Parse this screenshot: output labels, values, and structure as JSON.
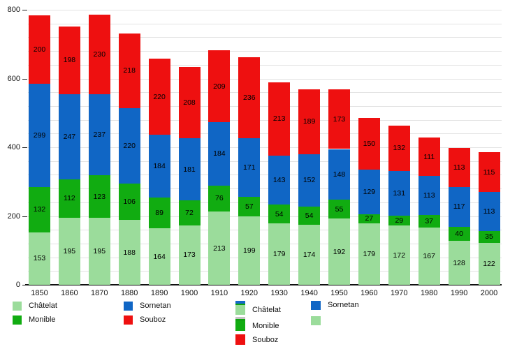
{
  "chart_data": {
    "type": "bar",
    "stacked": true,
    "title": "",
    "xlabel": "",
    "ylabel": "",
    "categories": [
      "1850",
      "1860",
      "1870",
      "1880",
      "1890",
      "1900",
      "1910",
      "1920",
      "1930",
      "1940",
      "1950",
      "1960",
      "1970",
      "1980",
      "1990",
      "2000"
    ],
    "series": [
      {
        "name": "Châtelat",
        "color": "#9BDC9B",
        "values": [
          153,
          195,
          195,
          188,
          164,
          173,
          213,
          199,
          179,
          174,
          192,
          179,
          172,
          167,
          128,
          122
        ]
      },
      {
        "name": "Monible",
        "color": "#11AC11",
        "values": [
          132,
          112,
          123,
          106,
          89,
          72,
          76,
          57,
          54,
          54,
          55,
          27,
          29,
          37,
          40,
          35
        ]
      },
      {
        "name": "Sornetan",
        "color": "#1066C5",
        "values": [
          299,
          247,
          237,
          220,
          184,
          181,
          184,
          171,
          143,
          152,
          148,
          129,
          131,
          113,
          117,
          113
        ]
      },
      {
        "name": "Souboz",
        "color": "#EE1010",
        "values": [
          200,
          198,
          230,
          218,
          220,
          208,
          209,
          236,
          213,
          189,
          173,
          150,
          132,
          111,
          113,
          115
        ]
      }
    ],
    "ylim": [
      0,
      800
    ],
    "yticks": [
      0,
      200,
      400,
      600,
      800
    ],
    "grid_step": 40,
    "grid_on": true,
    "legend_position": "bottom",
    "bar_value_labels": true
  },
  "legend_primary": {
    "columns": [
      {
        "items": [
          {
            "label": "Châtelat",
            "layers": [
              {
                "color": "#9BDC9B",
                "h": 13
              }
            ]
          },
          {
            "label": "Monible",
            "layers": [
              {
                "color": "#11AC11",
                "h": 13
              }
            ]
          }
        ]
      },
      {
        "items": [
          {
            "label": "Sornetan",
            "layers": [
              {
                "color": "#1066C5",
                "h": 13
              }
            ]
          },
          {
            "label": "Souboz",
            "layers": [
              {
                "color": "#EE1010",
                "h": 13
              }
            ]
          }
        ]
      }
    ]
  },
  "legend_secondary": {
    "columns": [
      {
        "items": [
          {
            "label": "Châtelat",
            "layers": [
              {
                "color": "#1568C9",
                "h": 4
              },
              {
                "color": "#0FA30F",
                "h": 2
              },
              {
                "color": "#9BDC9B",
                "h": 14
              }
            ]
          },
          {
            "label": "Monible",
            "layers": [
              {
                "color": "#C4C4C4",
                "h": 3
              },
              {
                "color": "#0FA30F",
                "h": 3
              },
              {
                "color": "#11AC11",
                "h": 14
              }
            ]
          },
          {
            "label": "Souboz",
            "layers": [
              {
                "color": "#EE1010",
                "h": 15
              }
            ]
          }
        ]
      },
      {
        "items": [
          {
            "label": "Sornetan",
            "layers": [
              {
                "color": "#1066C5",
                "h": 13
              }
            ]
          },
          {
            "label": "",
            "layers": [
              {
                "color": "#9BDC9B",
                "h": 13
              }
            ]
          }
        ]
      }
    ]
  },
  "colors": {
    "grid": "#e3e3e3",
    "axis": "#111111",
    "text": "#111111"
  }
}
